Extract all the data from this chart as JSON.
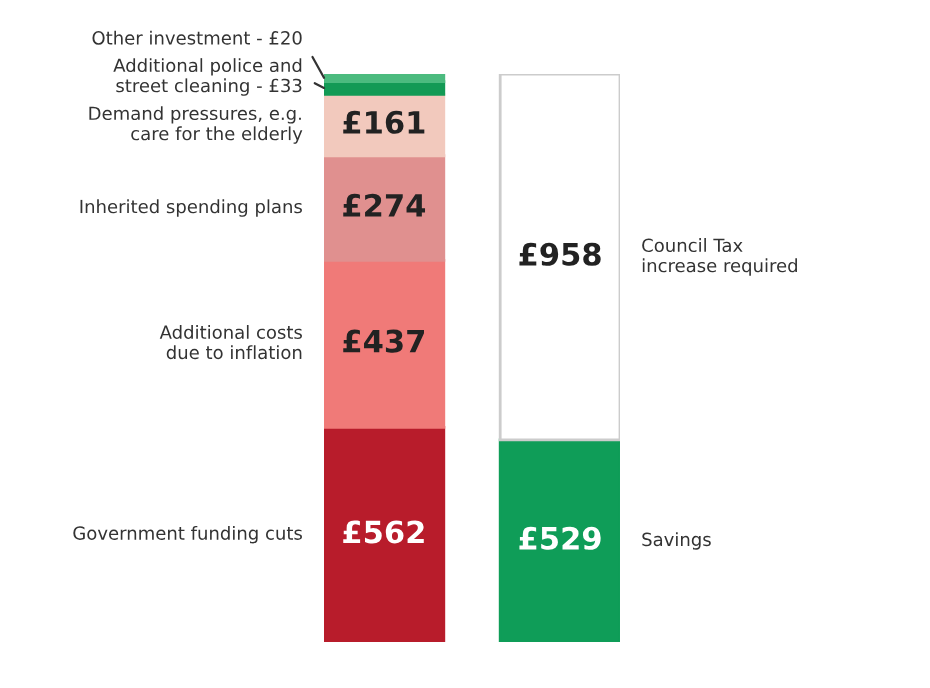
{
  "chart_data": {
    "type": "bar",
    "stacked": true,
    "categories": [
      null,
      null
    ],
    "series": [
      {
        "name": "Government funding cuts",
        "color": "#b81c2b",
        "values": [
          562,
          null
        ],
        "value_labels": [
          "£562",
          null
        ]
      },
      {
        "name": "Additional costs\ndue to inflation",
        "color": "#f07a78",
        "values": [
          437,
          null
        ],
        "value_labels": [
          "£437",
          null
        ]
      },
      {
        "name": "Inherited spending plans",
        "color": "#e0908f",
        "values": [
          274,
          null
        ],
        "value_labels": [
          "£274",
          null
        ]
      },
      {
        "name": "Demand pressures, e.g.\ncare for the elderly",
        "color": "#f2c9bd",
        "values": [
          161,
          null
        ],
        "value_labels": [
          "£161",
          null
        ]
      },
      {
        "name": "Additional police and\nstreet cleaning - £33",
        "color": "#139a55",
        "values": [
          33,
          null
        ],
        "value_labels": [
          null,
          null
        ]
      },
      {
        "name": "Other investment - £20",
        "color": "#4cbb7f",
        "values": [
          20,
          null
        ],
        "value_labels": [
          null,
          null
        ]
      },
      {
        "name": "Savings",
        "color": "#0f9d58",
        "values": [
          null,
          529
        ],
        "value_labels": [
          null,
          "£529"
        ]
      },
      {
        "name": "Council Tax\nincrease required",
        "color": "#ffffff",
        "values": [
          null,
          958
        ],
        "value_labels": [
          null,
          "£958"
        ]
      }
    ]
  }
}
